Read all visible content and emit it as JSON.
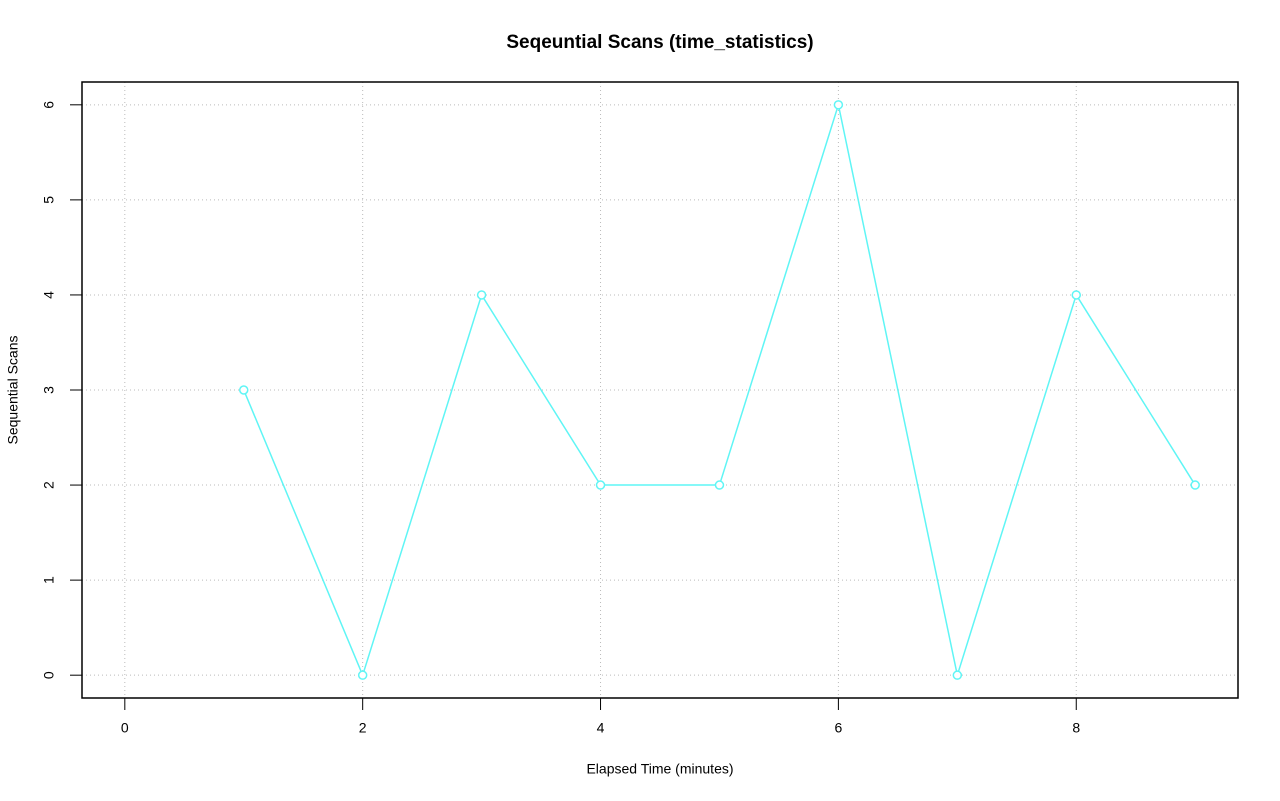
{
  "chart_data": {
    "type": "line",
    "title": "Seqeuntial Scans (time_statistics)",
    "x_label": "Elapsed Time (minutes)",
    "y_label": "Sequential Scans",
    "x": [
      1,
      2,
      3,
      4,
      5,
      6,
      7,
      8,
      9
    ],
    "series": [
      {
        "name": "Sequential Scans",
        "color": "#5ff5f5",
        "values": [
          3,
          0,
          4,
          2,
          2,
          6,
          0,
          4,
          2
        ]
      }
    ],
    "xlim": [
      -0.36,
      9.36
    ],
    "xticks": [
      0,
      2,
      4,
      6,
      8
    ],
    "ylim": [
      -0.24,
      6.24
    ],
    "yticks": [
      0,
      1,
      2,
      3,
      4,
      5,
      6
    ],
    "grid": true
  }
}
